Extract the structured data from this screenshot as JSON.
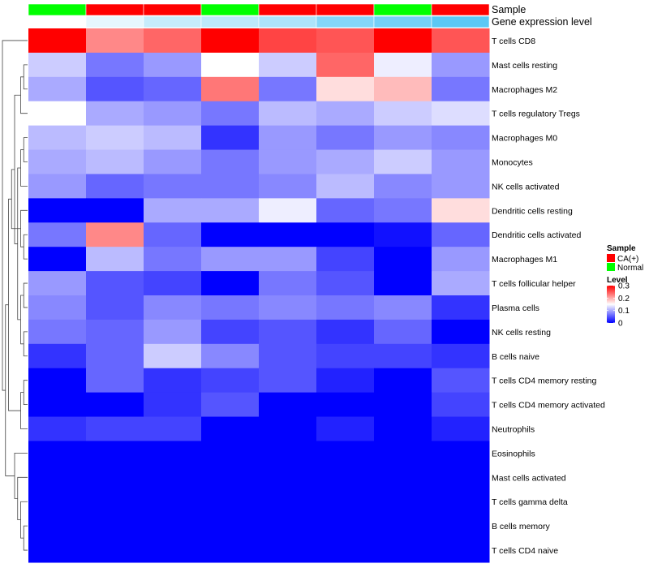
{
  "chart_data": {
    "type": "heatmap",
    "annotation_tracks": [
      {
        "name": "Sample",
        "legend_title": "Sample",
        "values": [
          "Normal",
          "CA(+)",
          "CA(+)",
          "Normal",
          "CA(+)",
          "CA(+)",
          "Normal",
          "CA(+)"
        ]
      },
      {
        "name": "Gene expression level",
        "values": [
          0.0,
          0.15,
          0.35,
          0.4,
          0.5,
          0.75,
          0.85,
          1.0
        ]
      }
    ],
    "sample_legend": {
      "title": "Sample",
      "entries": [
        {
          "label": "CA(+)",
          "color": "#ff0000"
        },
        {
          "label": "Normal",
          "color": "#00ff00"
        }
      ]
    },
    "level_legend": {
      "title": "Level",
      "range": [
        0,
        0.3
      ],
      "ticks": [
        {
          "value": 0.3,
          "label": "0.3"
        },
        {
          "value": 0.2,
          "label": "0.2"
        },
        {
          "value": 0.1,
          "label": "0.1"
        },
        {
          "value": 0,
          "label": "0"
        }
      ],
      "colors": [
        "#0000ff",
        "#ffffff",
        "#ff0000"
      ]
    },
    "expr_colors": [
      "#ffffff",
      "#5bc8f5"
    ],
    "rows": [
      {
        "label": "T cells CD8",
        "values": [
          0.3,
          0.22,
          0.24,
          0.3,
          0.26,
          0.25,
          0.3,
          0.25
        ]
      },
      {
        "label": "Mast cells resting",
        "values": [
          0.12,
          0.07,
          0.09,
          0.15,
          0.12,
          0.24,
          0.14,
          0.09
        ]
      },
      {
        "label": "Macrophages M2",
        "values": [
          0.1,
          0.05,
          0.06,
          0.23,
          0.07,
          0.17,
          0.19,
          0.07
        ]
      },
      {
        "label": "T cells regulatory  Tregs",
        "values": [
          0.15,
          0.1,
          0.09,
          0.07,
          0.11,
          0.1,
          0.12,
          0.13
        ]
      },
      {
        "label": "Macrophages M0",
        "values": [
          0.11,
          0.12,
          0.11,
          0.03,
          0.09,
          0.07,
          0.09,
          0.08
        ]
      },
      {
        "label": "Monocytes",
        "values": [
          0.1,
          0.11,
          0.09,
          0.07,
          0.09,
          0.1,
          0.12,
          0.09
        ]
      },
      {
        "label": "NK cells activated",
        "values": [
          0.09,
          0.06,
          0.07,
          0.07,
          0.08,
          0.11,
          0.08,
          0.09
        ]
      },
      {
        "label": "Dendritic cells resting",
        "values": [
          0.0,
          0.0,
          0.1,
          0.1,
          0.14,
          0.06,
          0.07,
          0.17
        ]
      },
      {
        "label": "Dendritic cells activated",
        "values": [
          0.07,
          0.22,
          0.06,
          0.0,
          0.0,
          0.0,
          0.01,
          0.06
        ]
      },
      {
        "label": "Macrophages M1",
        "values": [
          0.0,
          0.11,
          0.07,
          0.09,
          0.09,
          0.04,
          0.0,
          0.09
        ]
      },
      {
        "label": "T cells follicular helper",
        "values": [
          0.09,
          0.05,
          0.04,
          0.0,
          0.07,
          0.05,
          0.0,
          0.1
        ]
      },
      {
        "label": "Plasma cells",
        "values": [
          0.08,
          0.05,
          0.08,
          0.07,
          0.08,
          0.07,
          0.08,
          0.03
        ]
      },
      {
        "label": "NK cells resting",
        "values": [
          0.07,
          0.06,
          0.09,
          0.04,
          0.05,
          0.03,
          0.06,
          0.0
        ]
      },
      {
        "label": "B cells naive",
        "values": [
          0.03,
          0.06,
          0.12,
          0.08,
          0.05,
          0.04,
          0.04,
          0.03
        ]
      },
      {
        "label": "T cells CD4 memory resting",
        "values": [
          0.0,
          0.06,
          0.03,
          0.04,
          0.05,
          0.02,
          0.0,
          0.05
        ]
      },
      {
        "label": "T cells CD4 memory activated",
        "values": [
          0.0,
          0.0,
          0.03,
          0.05,
          0.0,
          0.0,
          0.0,
          0.04
        ]
      },
      {
        "label": "Neutrophils",
        "values": [
          0.03,
          0.04,
          0.04,
          0.0,
          0.0,
          0.02,
          0.0,
          0.02
        ]
      },
      {
        "label": "Eosinophils",
        "values": [
          0,
          0,
          0,
          0,
          0,
          0,
          0,
          0
        ]
      },
      {
        "label": "Mast cells activated",
        "values": [
          0,
          0,
          0,
          0,
          0,
          0,
          0,
          0
        ]
      },
      {
        "label": "T cells gamma delta",
        "values": [
          0,
          0,
          0,
          0,
          0,
          0,
          0,
          0
        ]
      },
      {
        "label": "B cells memory",
        "values": [
          0,
          0,
          0,
          0,
          0,
          0,
          0,
          0
        ]
      },
      {
        "label": "T cells CD4 naive",
        "values": [
          0,
          0,
          0,
          0,
          0,
          0,
          0,
          0
        ]
      }
    ]
  }
}
